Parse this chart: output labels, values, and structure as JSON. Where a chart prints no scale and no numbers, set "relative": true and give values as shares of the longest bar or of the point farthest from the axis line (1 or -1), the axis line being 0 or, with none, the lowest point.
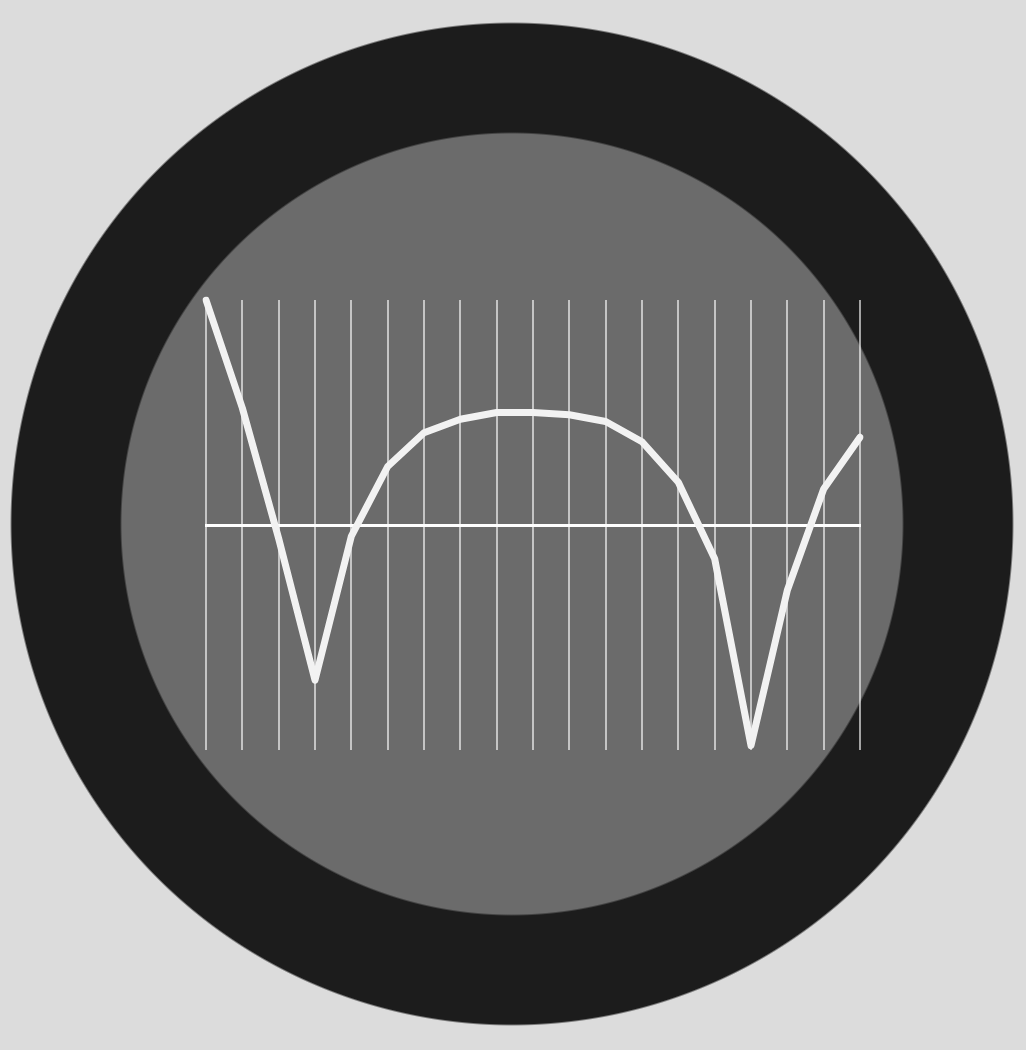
{
  "chart_data": {
    "type": "line",
    "relative": true,
    "grid": "x",
    "marker": "none",
    "line_style": "solid",
    "categories": [
      null,
      null,
      null,
      null,
      null,
      null,
      null,
      null,
      null,
      null,
      null,
      null,
      null,
      null,
      null,
      null,
      null,
      null,
      null
    ],
    "series": [
      {
        "color": "#f2f2f2",
        "values": [
          1.0,
          0.52,
          -0.06,
          -0.69,
          -0.05,
          0.26,
          0.41,
          0.47,
          0.5,
          0.5,
          0.49,
          0.46,
          0.37,
          0.19,
          -0.15,
          -0.98,
          -0.29,
          0.16,
          0.39
        ]
      }
    ]
  }
}
